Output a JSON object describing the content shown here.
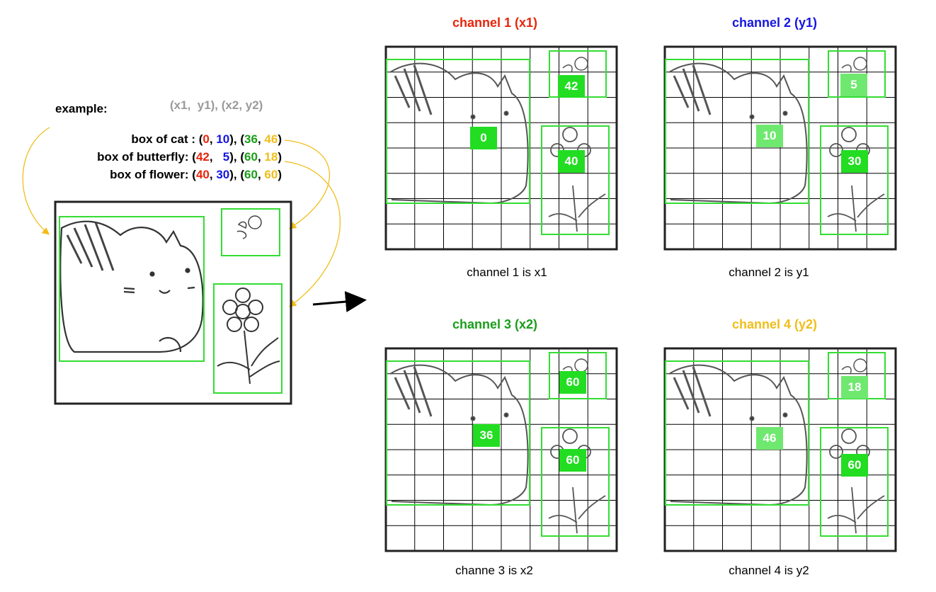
{
  "example": {
    "label": "example:",
    "header": "(x1,  y1), (x2, y2)",
    "boxes": [
      {
        "label": "box of cat :",
        "x1": "0",
        "y1": "10",
        "x2": "36",
        "y2": "46"
      },
      {
        "label": "box of butterfly:",
        "x1": "42",
        "y1": "5",
        "x2": "60",
        "y2": "18"
      },
      {
        "label": "box of flower:",
        "x1": "40",
        "y1": "30",
        "x2": "60",
        "y2": "60"
      }
    ]
  },
  "channels": [
    {
      "title": "channel 1 (x1)",
      "color": "#e8250c",
      "caption": "channel 1 is x1",
      "cat": "0",
      "butterfly": "42",
      "flower": "40"
    },
    {
      "title": "channel 2 (y1)",
      "color": "#1515e0",
      "caption": "channel 2 is y1",
      "cat": "10",
      "butterfly": "5",
      "flower": "30"
    },
    {
      "title": "channel 3 (x2)",
      "color": "#1a9e1a",
      "caption": "channe 3 is x2",
      "cat": "36",
      "butterfly": "60",
      "flower": "60"
    },
    {
      "title": "channel 4 (y2)",
      "color": "#f0be1a",
      "caption": "channel 4 is y2",
      "cat": "46",
      "butterfly": "18",
      "flower": "60"
    }
  ],
  "colors": {
    "box": "#33dd33",
    "arrow": "#f0be1a",
    "x1": "#e8250c",
    "y1": "#1515e0",
    "x2": "#1a9e1a",
    "y2": "#f0be1a"
  }
}
